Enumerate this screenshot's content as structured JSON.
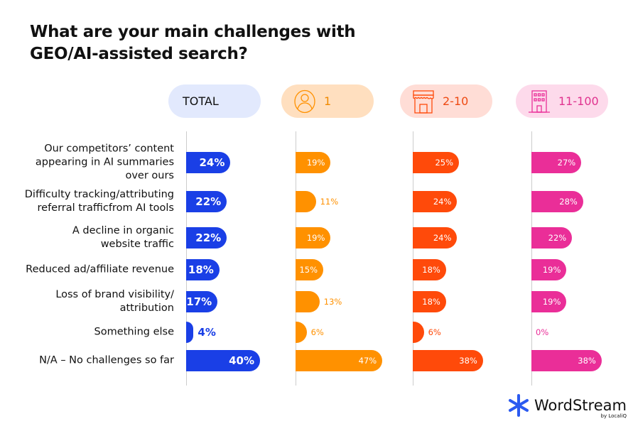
{
  "chart_data": {
    "type": "bar",
    "orientation": "horizontal",
    "title": "What are your main challenges with GEO/AI-assisted search?",
    "categories": [
      "Our competitors’ content appearing in AI summaries over ours",
      "Difficulty tracking/attributing referral trafficfrom AI tools",
      "A decline in organic website traffic",
      "Reduced ad/affiliate revenue",
      "Loss of brand visibility/ attribution",
      "Something else",
      "N/A – No challenges so far"
    ],
    "category_lines": [
      [
        "Our competitors’ content",
        "appearing in AI summaries",
        "over ours"
      ],
      [
        "Difficulty tracking/attributing",
        "referral trafficfrom AI tools"
      ],
      [
        "A decline in organic",
        "website traffic"
      ],
      [
        "Reduced ad/affiliate revenue"
      ],
      [
        "Loss of brand visibility/",
        "attribution"
      ],
      [
        "Something else"
      ],
      [
        "N/A – No challenges so far"
      ]
    ],
    "unit": "%",
    "series": [
      {
        "name": "TOTAL",
        "icon": "",
        "color": "#1a3fe6",
        "pill_bg": "#e2e9fd",
        "text_color": "#111111",
        "values": [
          24,
          22,
          22,
          18,
          17,
          4,
          40
        ]
      },
      {
        "name": "1",
        "icon": "person-icon",
        "color": "#ff9100",
        "pill_bg": "#ffdfbf",
        "text_color": "#f08a00",
        "values": [
          19,
          11,
          19,
          15,
          13,
          6,
          47
        ]
      },
      {
        "name": "2-10",
        "icon": "storefront-icon",
        "color": "#ff4a0a",
        "pill_bg": "#ffddd6",
        "text_color": "#ee4a12",
        "values": [
          25,
          24,
          24,
          18,
          18,
          6,
          38
        ]
      },
      {
        "name": "11-100",
        "icon": "office-building-icon",
        "color": "#ea2e98",
        "pill_bg": "#fddaeb",
        "text_color": "#e0338f",
        "values": [
          27,
          28,
          22,
          19,
          19,
          0,
          38
        ]
      }
    ]
  },
  "logo": {
    "name": "WordStream",
    "by": "by LocaliQ"
  }
}
